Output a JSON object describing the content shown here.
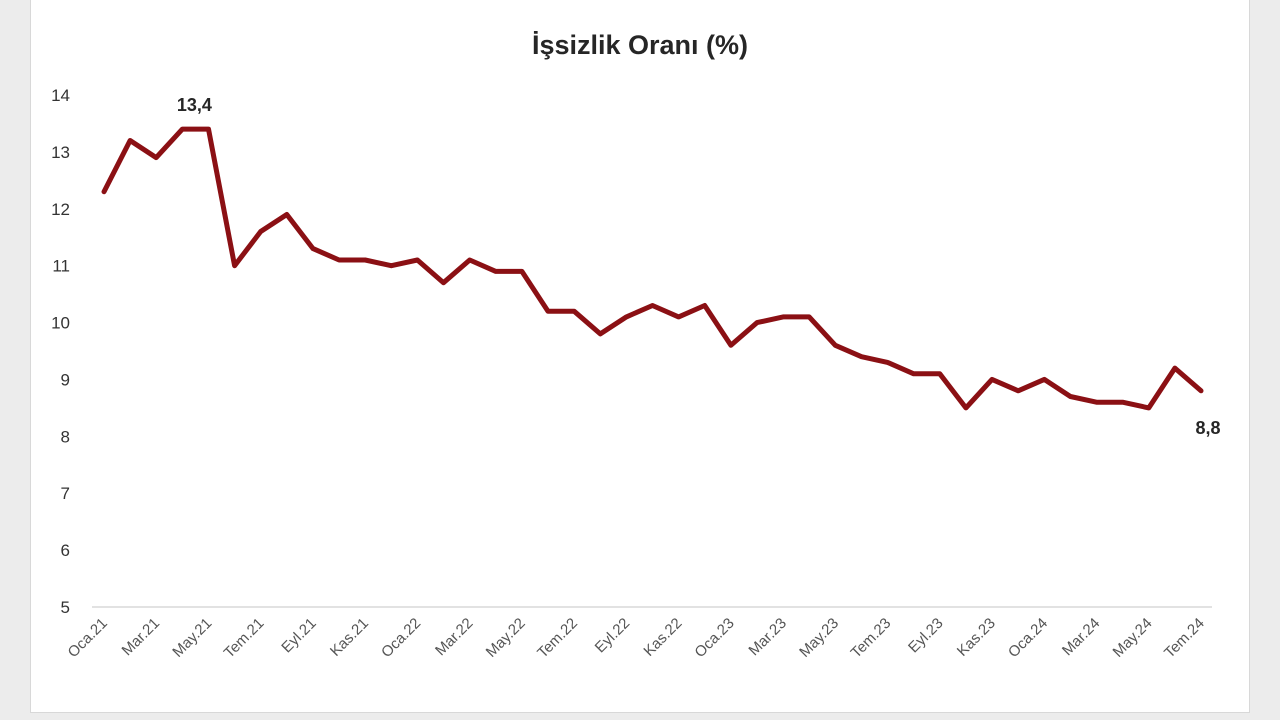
{
  "chart_data": {
    "type": "line",
    "title": "İşsizlik Oranı (%)",
    "xlabel": "",
    "ylabel": "",
    "ylim": [
      5,
      14
    ],
    "yticks": [
      5,
      6,
      7,
      8,
      9,
      10,
      11,
      12,
      13,
      14
    ],
    "grid": false,
    "legend": "none",
    "line_color": "#8b1014",
    "x_tick_labels": [
      "Oca.21",
      "Mar.21",
      "May.21",
      "Tem.21",
      "Eyl.21",
      "Kas.21",
      "Oca.22",
      "Mar.22",
      "May.22",
      "Tem.22",
      "Eyl.22",
      "Kas.22",
      "Oca.23",
      "Mar.23",
      "May.23",
      "Tem.23",
      "Eyl.23",
      "Kas.23",
      "Oca.24",
      "Mar.24",
      "May.24",
      "Tem.24"
    ],
    "series": [
      {
        "values": [
          12.3,
          13.2,
          12.9,
          13.4,
          13.4,
          11.0,
          11.6,
          11.9,
          11.3,
          11.1,
          11.1,
          11.0,
          11.1,
          10.7,
          11.1,
          10.9,
          10.9,
          10.2,
          10.2,
          9.8,
          10.1,
          10.3,
          10.1,
          10.3,
          9.6,
          10.0,
          10.1,
          10.1,
          9.6,
          9.4,
          9.3,
          9.1,
          9.1,
          8.5,
          9.0,
          8.8,
          9.0,
          8.7,
          8.6,
          8.6,
          8.5,
          9.2,
          8.8
        ]
      }
    ],
    "annotations": [
      {
        "index": 3,
        "text": "13,4"
      },
      {
        "index": 42,
        "text": "8,8"
      }
    ]
  }
}
